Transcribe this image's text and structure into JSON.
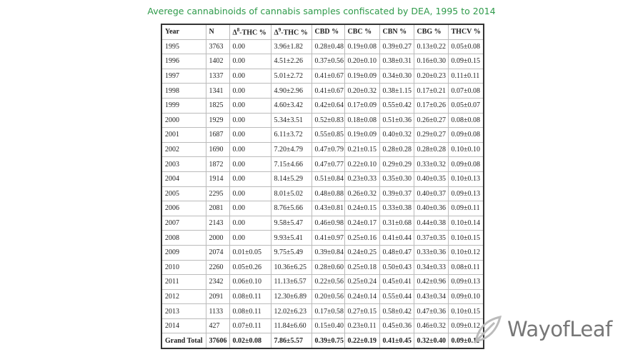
{
  "title": "Averege cannabinoids of cannabis samples confiscated by DEA, 1995 to 2014",
  "table": {
    "header": [
      "Year",
      "N",
      "Δ8-THC %",
      "Δ9-THC %",
      "CBD %",
      "CBC %",
      "CBN %",
      "CBG %",
      "THCV %"
    ],
    "rows": [
      [
        "1995",
        "3763",
        "0.00",
        "3.96±1.82",
        "0.28±0.48",
        "0.19±0.08",
        "0.39±0.27",
        "0.13±0.22",
        "0.05±0.08"
      ],
      [
        "1996",
        "1402",
        "0.00",
        "4.51±2.26",
        "0.37±0.56",
        "0.20±0.10",
        "0.38±0.31",
        "0.16±0.30",
        "0.09±0.15"
      ],
      [
        "1997",
        "1337",
        "0.00",
        "5.01±2.72",
        "0.41±0.67",
        "0.19±0.09",
        "0.34±0.30",
        "0.20±0.23",
        "0.11±0.11"
      ],
      [
        "1998",
        "1341",
        "0.00",
        "4.90±2.96",
        "0.41±0.67",
        "0.20±0.32",
        "0.38±1.15",
        "0.17±0.21",
        "0.07±0.08"
      ],
      [
        "1999",
        "1825",
        "0.00",
        "4.60±3.42",
        "0.42±0.64",
        "0.17±0.09",
        "0.55±0.42",
        "0.17±0.26",
        "0.05±0.07"
      ],
      [
        "2000",
        "1929",
        "0.00",
        "5.34±3.51",
        "0.52±0.83",
        "0.18±0.08",
        "0.51±0.36",
        "0.26±0.27",
        "0.08±0.08"
      ],
      [
        "2001",
        "1687",
        "0.00",
        "6.11±3.72",
        "0.55±0.85",
        "0.19±0.09",
        "0.40±0.32",
        "0.29±0.27",
        "0.09±0.08"
      ],
      [
        "2002",
        "1690",
        "0.00",
        "7.20±4.79",
        "0.47±0.79",
        "0.21±0.15",
        "0.28±0.28",
        "0.28±0.28",
        "0.10±0.10"
      ],
      [
        "2003",
        "1872",
        "0.00",
        "7.15±4.66",
        "0.47±0.77",
        "0.22±0.10",
        "0.29±0.29",
        "0.33±0.32",
        "0.09±0.08"
      ],
      [
        "2004",
        "1914",
        "0.00",
        "8.14±5.29",
        "0.51±0.84",
        "0.23±0.33",
        "0.35±0.30",
        "0.40±0.35",
        "0.10±0.13"
      ],
      [
        "2005",
        "2295",
        "0.00",
        "8.01±5.02",
        "0.48±0.88",
        "0.26±0.32",
        "0.39±0.37",
        "0.40±0.37",
        "0.09±0.13"
      ],
      [
        "2006",
        "2081",
        "0.00",
        "8.76±5.66",
        "0.43±0.81",
        "0.24±0.15",
        "0.33±0.38",
        "0.40±0.36",
        "0.09±0.11"
      ],
      [
        "2007",
        "2143",
        "0.00",
        "9.58±5.47",
        "0.46±0.98",
        "0.24±0.17",
        "0.31±0.68",
        "0.44±0.38",
        "0.10±0.14"
      ],
      [
        "2008",
        "2000",
        "0.00",
        "9.93±5.41",
        "0.41±0.97",
        "0.25±0.16",
        "0.41±0.44",
        "0.37±0.35",
        "0.10±0.15"
      ],
      [
        "2009",
        "2074",
        "0.01±0.05",
        "9.75±5.49",
        "0.39±0.84",
        "0.24±0.25",
        "0.48±0.47",
        "0.33±0.36",
        "0.10±0.12"
      ],
      [
        "2010",
        "2260",
        "0.05±0.26",
        "10.36±6.25",
        "0.28±0.60",
        "0.25±0.18",
        "0.50±0.43",
        "0.34±0.33",
        "0.08±0.11"
      ],
      [
        "2011",
        "2342",
        "0.06±0.10",
        "11.13±6.57",
        "0.22±0.56",
        "0.25±0.24",
        "0.45±0.41",
        "0.42±0.96",
        "0.09±0.13"
      ],
      [
        "2012",
        "2091",
        "0.08±0.11",
        "12.30±6.89",
        "0.20±0.56",
        "0.24±0.14",
        "0.55±0.44",
        "0.43±0.34",
        "0.09±0.10"
      ],
      [
        "2013",
        "1133",
        "0.08±0.11",
        "12.02±6.23",
        "0.17±0.58",
        "0.27±0.15",
        "0.58±0.42",
        "0.47±0.36",
        "0.10±0.15"
      ],
      [
        "2014",
        "427",
        "0.07±0.11",
        "11.84±6.60",
        "0.15±0.40",
        "0.23±0.11",
        "0.45±0.36",
        "0.46±0.32",
        "0.09±0.12"
      ]
    ],
    "total": [
      "Grand Total",
      "37606",
      "0.02±0.08",
      "7.86±5.57",
      "0.39±0.75",
      "0.22±0.19",
      "0.41±0.45",
      "0.32±0.40",
      "0.09±0.11"
    ]
  },
  "watermark": "WayofLeaf"
}
